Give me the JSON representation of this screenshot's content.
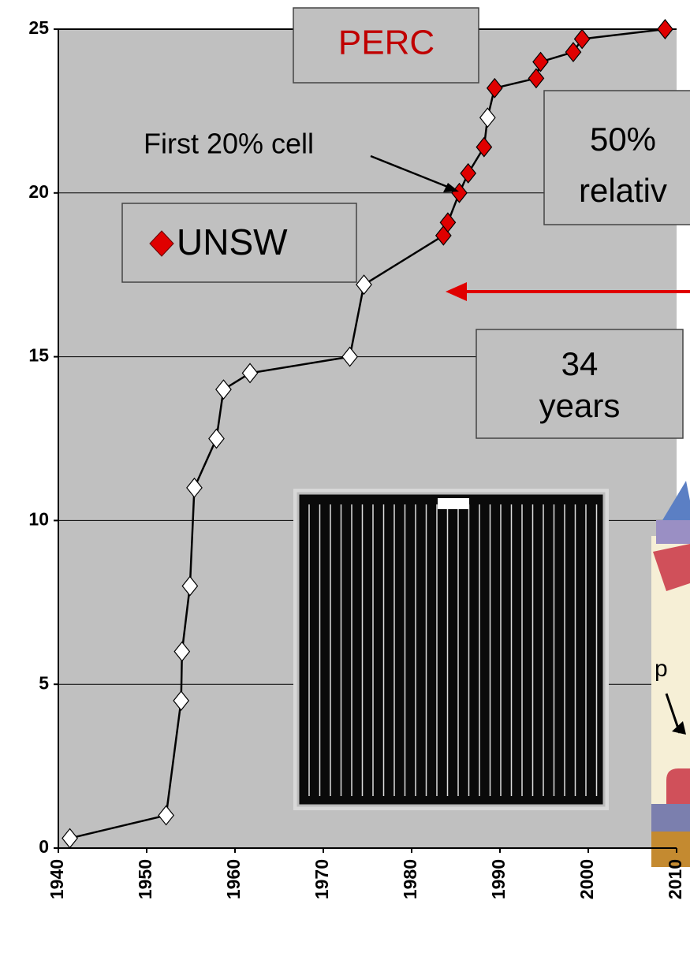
{
  "chart_data": {
    "type": "scatter",
    "xlim": [
      1940,
      2010
    ],
    "xticks": [
      1940,
      1950,
      1960,
      1970,
      1980,
      1990,
      2000,
      2010
    ],
    "ylim": [
      0,
      25
    ],
    "yticks": [
      0,
      5,
      10,
      15,
      20,
      25
    ],
    "grid": true,
    "background": "#c0c0c0",
    "connect": true,
    "series": [
      {
        "color": "#ffffff",
        "x": [
          1941.3,
          1952.2,
          1953.9,
          1954,
          1954.9,
          1955.4,
          1957.9,
          1958.7,
          1961.7,
          1973,
          1974.6,
          1988.6
        ],
        "values": [
          0.3,
          1,
          4.5,
          6,
          8,
          11,
          12.5,
          14,
          14.5,
          15,
          17.2,
          22.3
        ]
      },
      {
        "name": "UNSW",
        "color": "#e00000",
        "x": [
          1983.6,
          1984.1,
          1985.4,
          1986.4,
          1988.2,
          1989.4,
          1994.1,
          1994.6,
          1998.3,
          1999.3,
          2008.7
        ],
        "values": [
          18.7,
          19.1,
          20,
          20.6,
          21.4,
          23.2,
          23.5,
          24,
          24.3,
          24.7,
          25
        ]
      }
    ],
    "annotations": {
      "perc": "PERC",
      "first_cell": "First 20% cell",
      "relative_1": "50%",
      "relative_2": "relativ",
      "years_1": "34",
      "years_2": "years",
      "diagram_label": "p"
    }
  }
}
